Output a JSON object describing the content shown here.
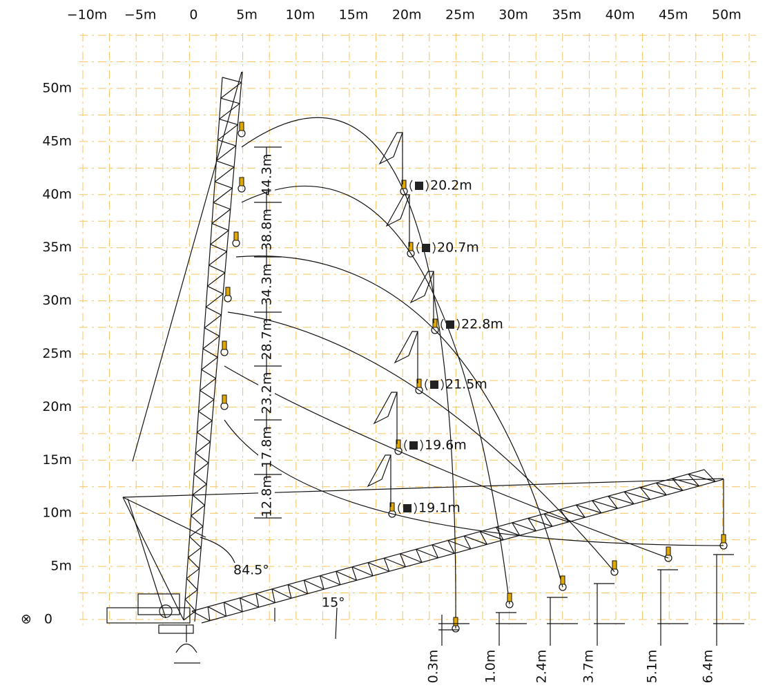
{
  "x_axis": {
    "labels": [
      "−10m",
      "−5m",
      "0",
      "5m",
      "10m",
      "15m",
      "20m",
      "25m",
      "30m",
      "35m",
      "40m",
      "45m",
      "50m"
    ]
  },
  "y_axis": {
    "labels": [
      "0",
      "5m",
      "10m",
      "15m",
      "20m",
      "25m",
      "30m",
      "35m",
      "40m",
      "45m",
      "50m"
    ]
  },
  "angles": [
    "84.5°",
    "15°"
  ],
  "lift_heights": [
    "44.3m",
    "38.8m",
    "34.3m",
    "28.7m",
    "23.2m",
    "17.8m",
    "12.8m"
  ],
  "radii": [
    "20.2m",
    "20.7m",
    "22.8m",
    "21.5m",
    "19.6m",
    "19.1m"
  ],
  "ground_offsets": [
    "0.3m",
    "1.0m",
    "2.4m",
    "3.7m",
    "5.1m",
    "6.4m"
  ]
}
